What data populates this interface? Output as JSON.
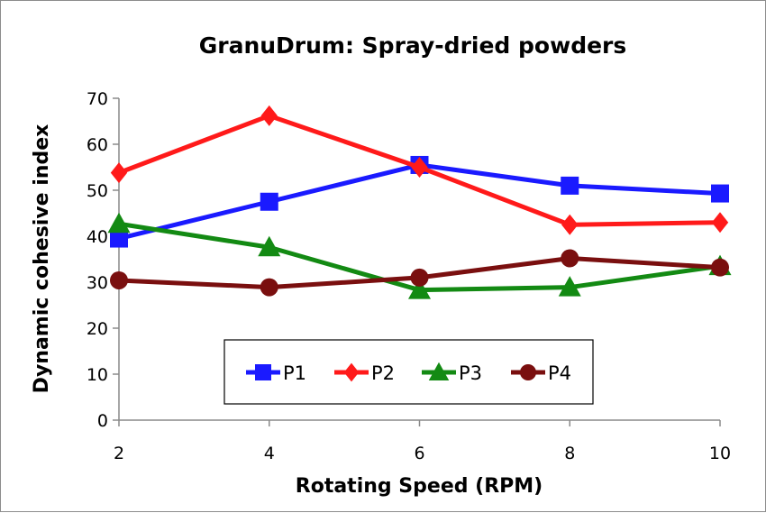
{
  "chart_data": {
    "type": "line",
    "title": "GranuDrum: Spray-dried powders",
    "xlabel": "Rotating Speed (RPM)",
    "ylabel": "Dynamic cohesive index",
    "x": [
      2,
      4,
      6,
      8,
      10
    ],
    "xlim": [
      2,
      10
    ],
    "ylim": [
      0,
      70
    ],
    "y_ticks": [
      0,
      10,
      20,
      30,
      40,
      50,
      60,
      70
    ],
    "x_ticks": [
      2,
      4,
      6,
      8,
      10
    ],
    "grid": false,
    "legend_position": "bottom-center",
    "series": [
      {
        "name": "P1",
        "color": "#1a1aff",
        "marker": "square",
        "values": [
          39.5,
          47.5,
          55.5,
          51,
          49.3
        ]
      },
      {
        "name": "P2",
        "color": "#ff1a1a",
        "marker": "diamond",
        "values": [
          53.8,
          66.2,
          55,
          42.5,
          43
        ]
      },
      {
        "name": "P3",
        "color": "#138a13",
        "marker": "triangle",
        "values": [
          42.7,
          37.6,
          28.3,
          28.9,
          33.5
        ]
      },
      {
        "name": "P4",
        "color": "#7a0f0f",
        "marker": "circle",
        "values": [
          30.4,
          28.9,
          31,
          35.2,
          33.2
        ]
      }
    ]
  }
}
